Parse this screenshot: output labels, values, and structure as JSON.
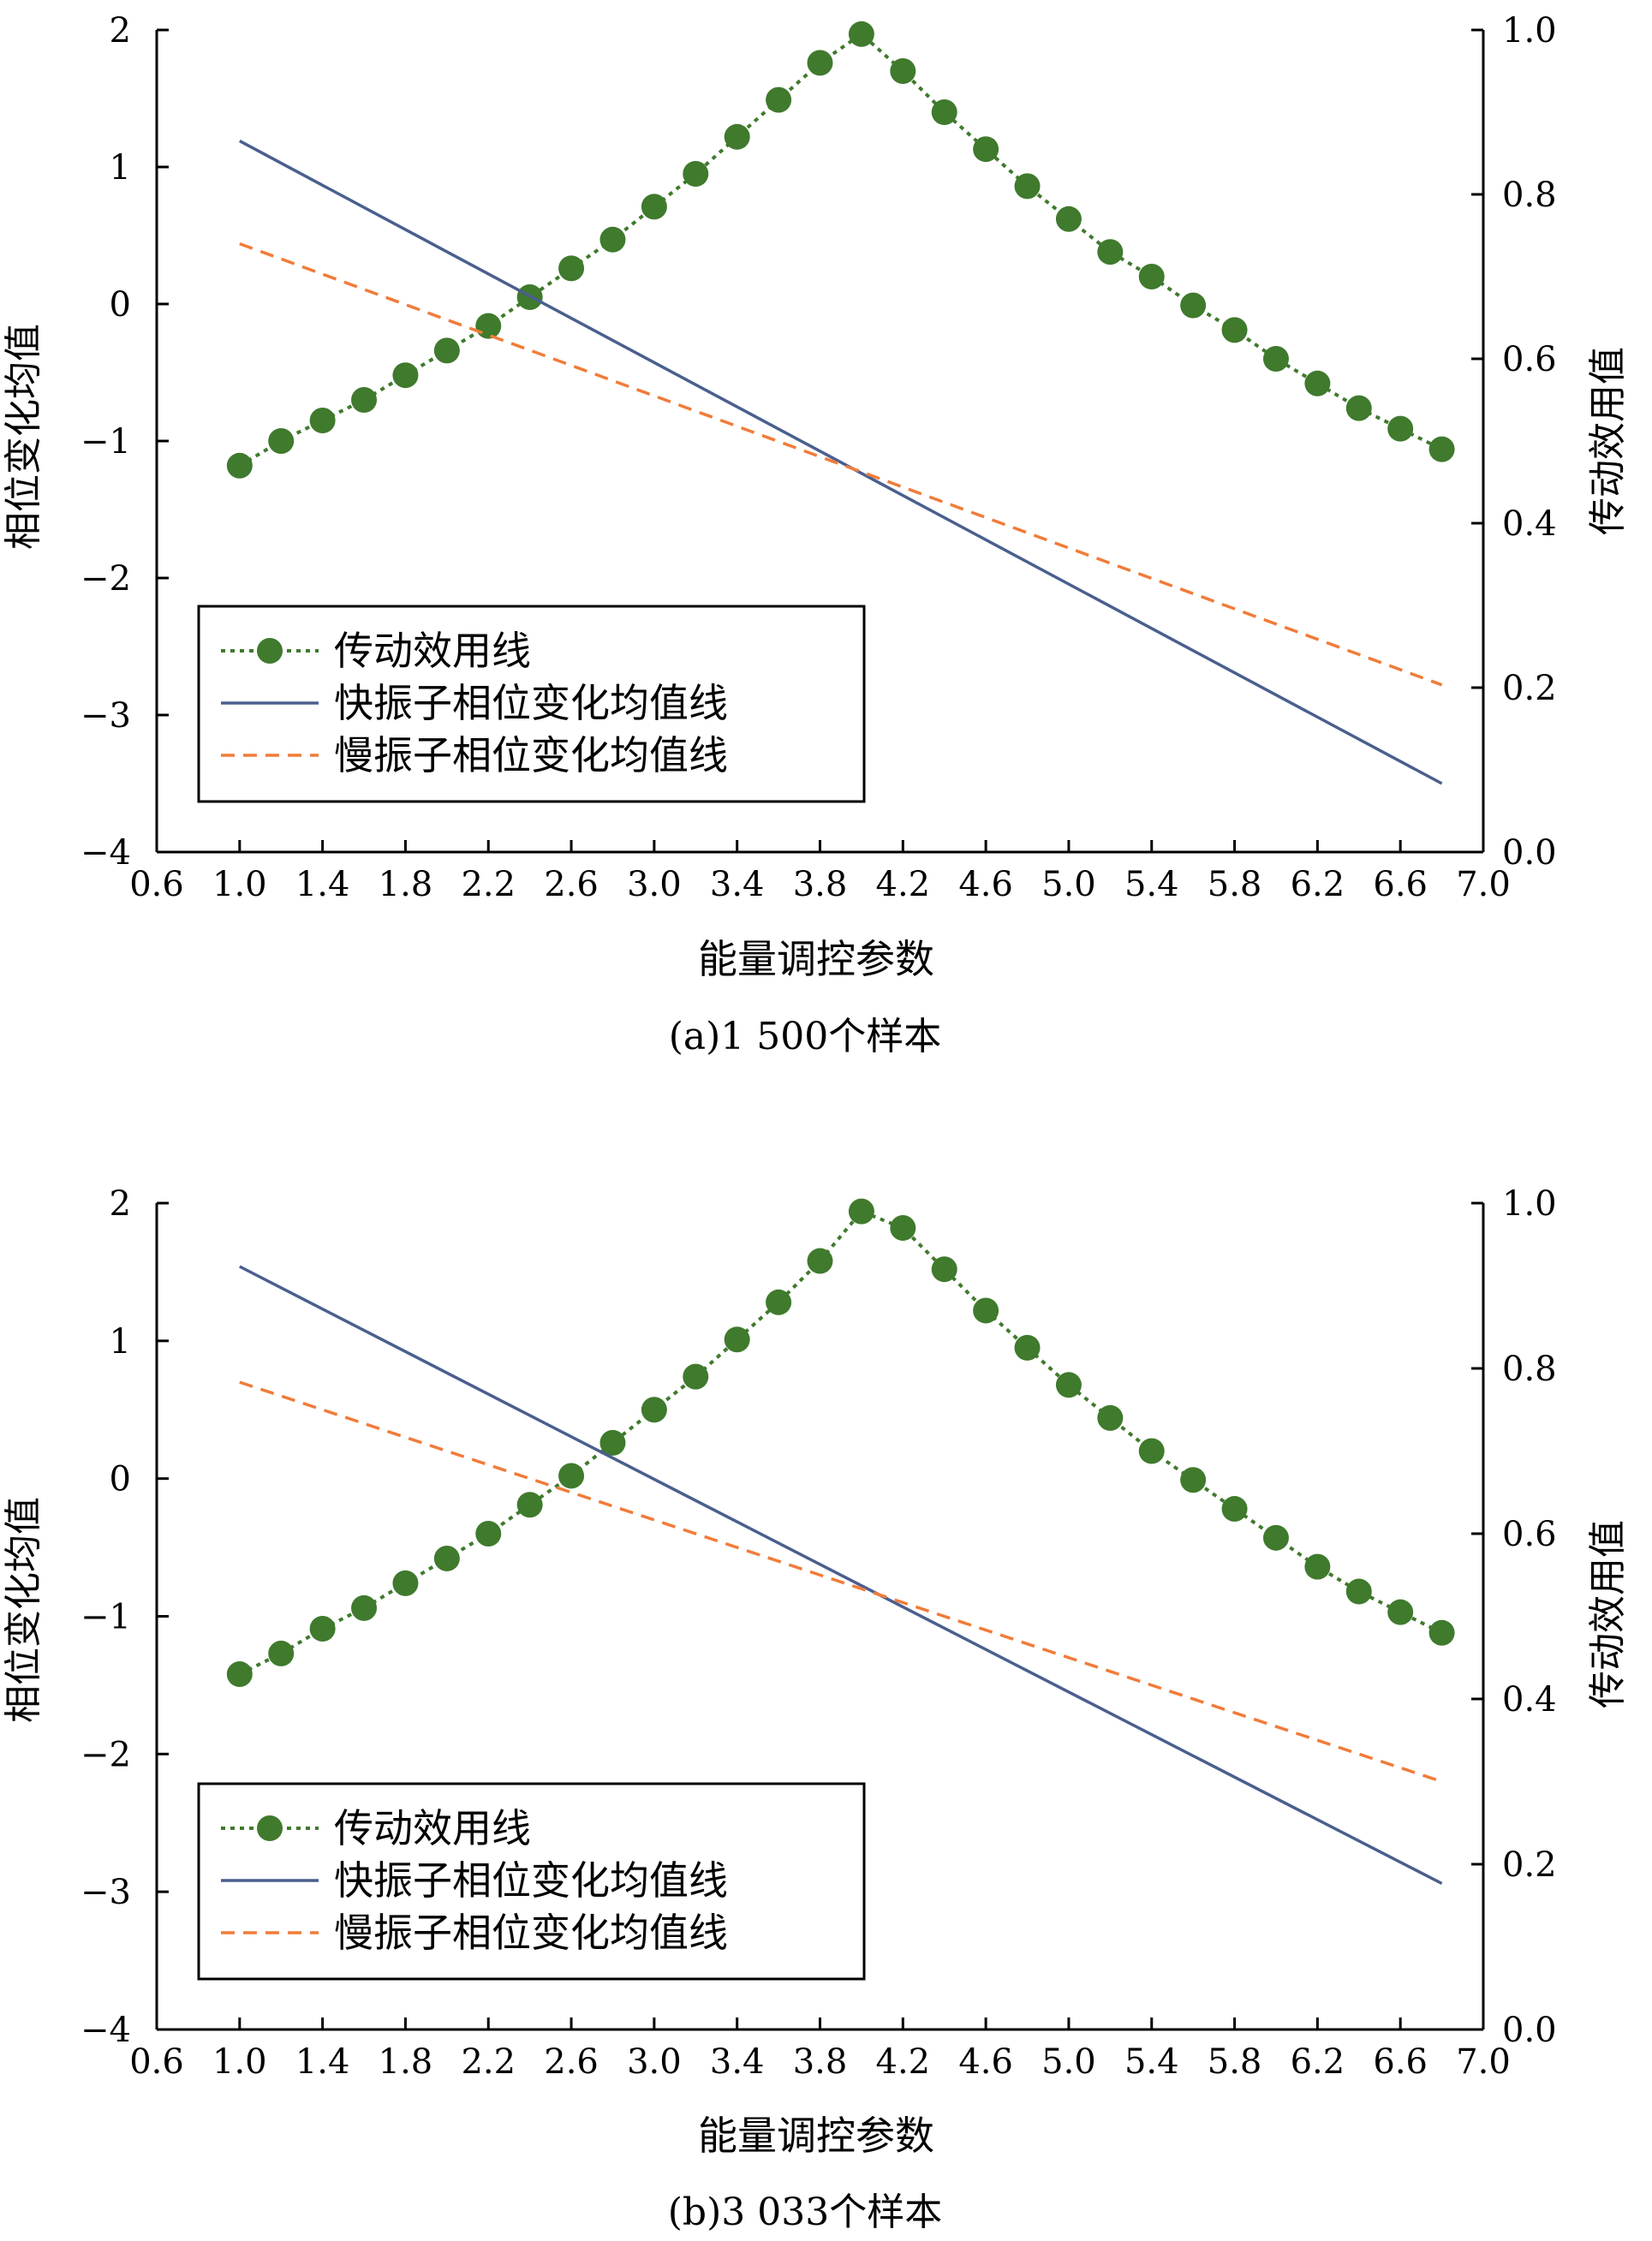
{
  "chart_data": [
    {
      "type": "line",
      "caption": "(a)1 500个样本",
      "xlabel": "能量调控参数",
      "ylabel_left": "相位变化均值",
      "ylabel_right": "传动效用值",
      "xlim": [
        0.6,
        7.0
      ],
      "ylim_left": [
        -4,
        2
      ],
      "ylim_right": [
        0.0,
        1.0
      ],
      "x_ticks": [
        "0.6",
        "1.0",
        "1.4",
        "1.8",
        "2.2",
        "2.6",
        "3.0",
        "3.4",
        "3.8",
        "4.2",
        "4.6",
        "5.0",
        "5.4",
        "5.8",
        "6.2",
        "6.6",
        "7.0"
      ],
      "y_left_ticks": [
        "−4",
        "−3",
        "−2",
        "−1",
        "0",
        "1",
        "2"
      ],
      "y_right_ticks": [
        "0.0",
        "0.2",
        "0.4",
        "0.6",
        "0.8",
        "1.0"
      ],
      "grid": false,
      "legend_position": "lower-left",
      "series": [
        {
          "name": "传动效用线",
          "axis": "right",
          "style": "dotted-markers",
          "color": "#3f7a2d",
          "x": [
            1.0,
            1.2,
            1.4,
            1.6,
            1.8,
            2.0,
            2.2,
            2.4,
            2.6,
            2.8,
            3.0,
            3.2,
            3.4,
            3.6,
            3.8,
            4.0,
            4.2,
            4.4,
            4.6,
            4.8,
            5.0,
            5.2,
            5.4,
            5.6,
            5.8,
            6.0,
            6.2,
            6.4,
            6.6,
            6.8
          ],
          "y": [
            0.47,
            0.5,
            0.525,
            0.55,
            0.58,
            0.61,
            0.64,
            0.675,
            0.71,
            0.745,
            0.785,
            0.825,
            0.87,
            0.915,
            0.96,
            0.995,
            0.95,
            0.9,
            0.855,
            0.81,
            0.77,
            0.73,
            0.7,
            0.665,
            0.635,
            0.6,
            0.57,
            0.54,
            0.515,
            0.49
          ]
        },
        {
          "name": "快振子相位变化均值线",
          "axis": "left",
          "style": "solid",
          "color": "#4a5f8e",
          "x": [
            1.0,
            6.8
          ],
          "y": [
            1.19,
            -3.5
          ]
        },
        {
          "name": "慢振子相位变化均值线",
          "axis": "left",
          "style": "dashed",
          "color": "#f07c3a",
          "x": [
            1.0,
            6.8
          ],
          "y": [
            0.44,
            -2.78
          ]
        }
      ]
    },
    {
      "type": "line",
      "caption": "(b)3 033个样本",
      "xlabel": "能量调控参数",
      "ylabel_left": "相位变化均值",
      "ylabel_right": "传动效用值",
      "xlim": [
        0.6,
        7.0
      ],
      "ylim_left": [
        -4,
        2
      ],
      "ylim_right": [
        0.0,
        1.0
      ],
      "x_ticks": [
        "0.6",
        "1.0",
        "1.4",
        "1.8",
        "2.2",
        "2.6",
        "3.0",
        "3.4",
        "3.8",
        "4.2",
        "4.6",
        "5.0",
        "5.4",
        "5.8",
        "6.2",
        "6.6",
        "7.0"
      ],
      "y_left_ticks": [
        "−4",
        "−3",
        "−2",
        "−1",
        "0",
        "1",
        "2"
      ],
      "y_right_ticks": [
        "0.0",
        "0.2",
        "0.4",
        "0.6",
        "0.8",
        "1.0"
      ],
      "grid": false,
      "legend_position": "lower-left",
      "series": [
        {
          "name": "传动效用线",
          "axis": "right",
          "style": "dotted-markers",
          "color": "#3f7a2d",
          "x": [
            1.0,
            1.2,
            1.4,
            1.6,
            1.8,
            2.0,
            2.2,
            2.4,
            2.6,
            2.8,
            3.0,
            3.2,
            3.4,
            3.6,
            3.8,
            4.0,
            4.2,
            4.4,
            4.6,
            4.8,
            5.0,
            5.2,
            5.4,
            5.6,
            5.8,
            6.0,
            6.2,
            6.4,
            6.6,
            6.8
          ],
          "y": [
            0.43,
            0.455,
            0.485,
            0.51,
            0.54,
            0.57,
            0.6,
            0.635,
            0.67,
            0.71,
            0.75,
            0.79,
            0.835,
            0.88,
            0.93,
            0.99,
            0.97,
            0.92,
            0.87,
            0.825,
            0.78,
            0.74,
            0.7,
            0.665,
            0.63,
            0.595,
            0.56,
            0.53,
            0.505,
            0.48
          ]
        },
        {
          "name": "快振子相位变化均值线",
          "axis": "left",
          "style": "solid",
          "color": "#4a5f8e",
          "x": [
            1.0,
            6.8
          ],
          "y": [
            1.54,
            -2.94
          ]
        },
        {
          "name": "慢振子相位变化均值线",
          "axis": "left",
          "style": "dashed",
          "color": "#f07c3a",
          "x": [
            1.0,
            6.8
          ],
          "y": [
            0.7,
            -2.2
          ]
        }
      ]
    }
  ]
}
